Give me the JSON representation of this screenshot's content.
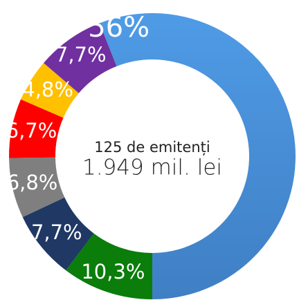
{
  "chart_data": {
    "type": "donut",
    "values": [
      56,
      10.3,
      7.7,
      6.8,
      6.7,
      4.8,
      7.7
    ],
    "value_labels": [
      "56%",
      "10,3%",
      "7,7%",
      "6,8%",
      "6,7%",
      "4,8%",
      "7,7%"
    ],
    "colors": [
      "#4a90dc",
      "#0a7d0a",
      "#1f3864",
      "#7f7f7f",
      "#ff0000",
      "#ffc000",
      "#7030a0"
    ],
    "annotations": [
      "125 de emitenți",
      "1.949 mil. lei"
    ]
  }
}
